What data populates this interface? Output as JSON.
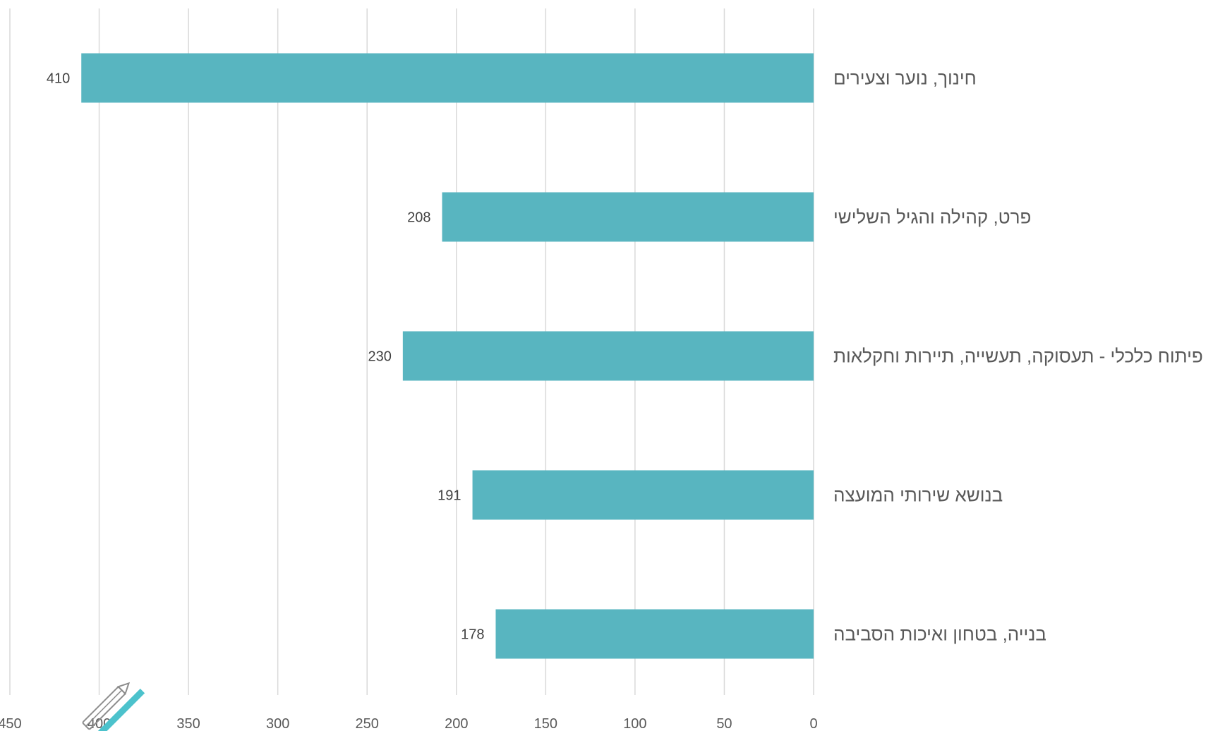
{
  "chart_data": {
    "type": "bar",
    "orientation": "horizontal",
    "x_direction": "reversed",
    "categories": [
      "חינוך, נוער וצעירים",
      "פרט, קהילה והגיל השלישי",
      "פיתוח כלכלי - תעסוקה, תעשייה, תיירות וחקלאות",
      "בנושא שירותי המועצה",
      "בנייה, בטחון ואיכות הסביבה"
    ],
    "values": [
      410,
      208,
      230,
      191,
      178
    ],
    "data_labels": [
      "410",
      "208",
      "230",
      "191",
      "178"
    ],
    "xlim": [
      0,
      450
    ],
    "x_ticks": [
      0,
      50,
      100,
      150,
      200,
      250,
      300,
      350,
      400,
      450
    ],
    "x_tick_labels": [
      "0",
      "50",
      "100",
      "150",
      "200",
      "250",
      "300",
      "350",
      "400",
      "450"
    ],
    "title": "",
    "xlabel": "",
    "ylabel": "",
    "grid": true,
    "legend": "none"
  },
  "colors": {
    "bar": "#58b5c0",
    "grid": "#d9d9d9",
    "text": "#595959",
    "watermark_accent": "#4cc2cc",
    "watermark_stroke": "#8c8c8c"
  },
  "watermark": {
    "icon": "pen-and-pencil-icon"
  }
}
